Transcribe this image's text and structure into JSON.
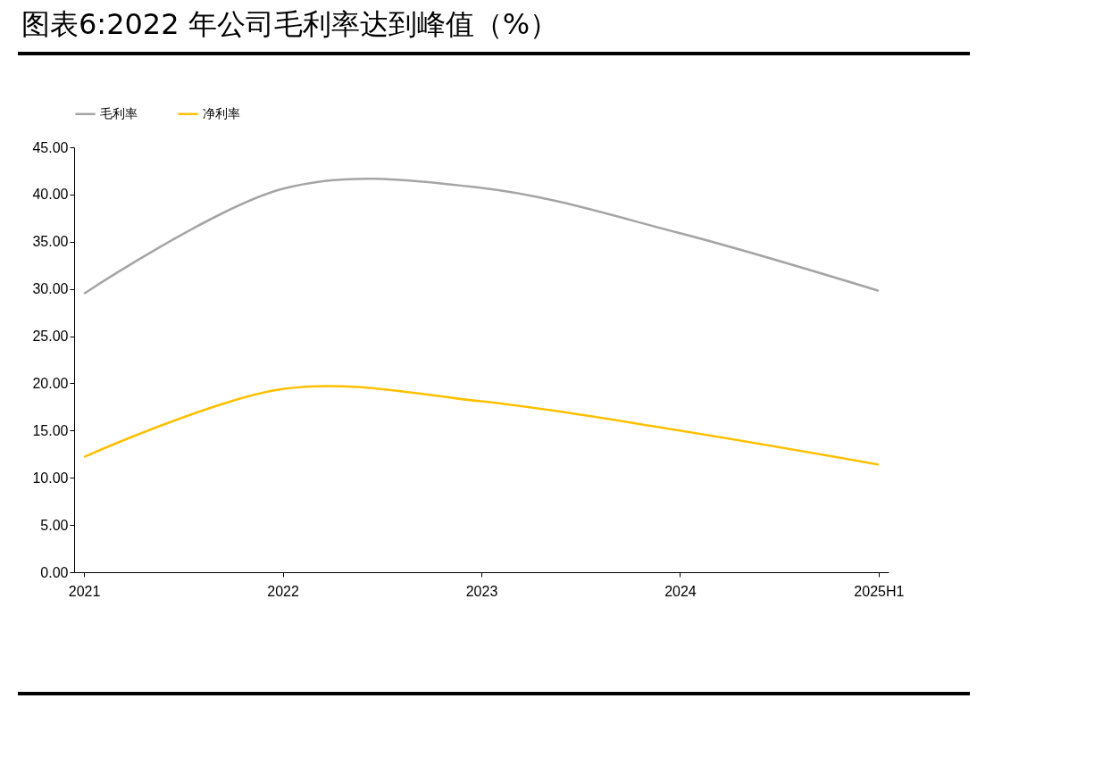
{
  "chart_data": {
    "type": "line",
    "title": "图表6:2022 年公司毛利率达到峰值（%）",
    "categories": [
      "2021",
      "2022",
      "2023",
      "2024",
      "2025H1"
    ],
    "series": [
      {
        "name": "毛利率",
        "color": "#a5a5a5",
        "values": [
          29.5,
          40.6,
          40.7,
          35.9,
          29.8
        ]
      },
      {
        "name": "净利率",
        "color": "#ffc000",
        "values": [
          12.2,
          19.4,
          18.1,
          15.0,
          11.4
        ]
      }
    ],
    "ylim": [
      0,
      45
    ],
    "yticks": [
      {
        "value": 0,
        "label": "0.00"
      },
      {
        "value": 5,
        "label": "5.00"
      },
      {
        "value": 10,
        "label": "10.00"
      },
      {
        "value": 15,
        "label": "15.00"
      },
      {
        "value": 20,
        "label": "20.00"
      },
      {
        "value": 25,
        "label": "25.00"
      },
      {
        "value": 30,
        "label": "30.00"
      },
      {
        "value": 35,
        "label": "35.00"
      },
      {
        "value": 40,
        "label": "40.00"
      },
      {
        "value": 45,
        "label": "45.00"
      }
    ],
    "grid": false,
    "legend": "top",
    "marker": "none",
    "line_style": "solid"
  }
}
